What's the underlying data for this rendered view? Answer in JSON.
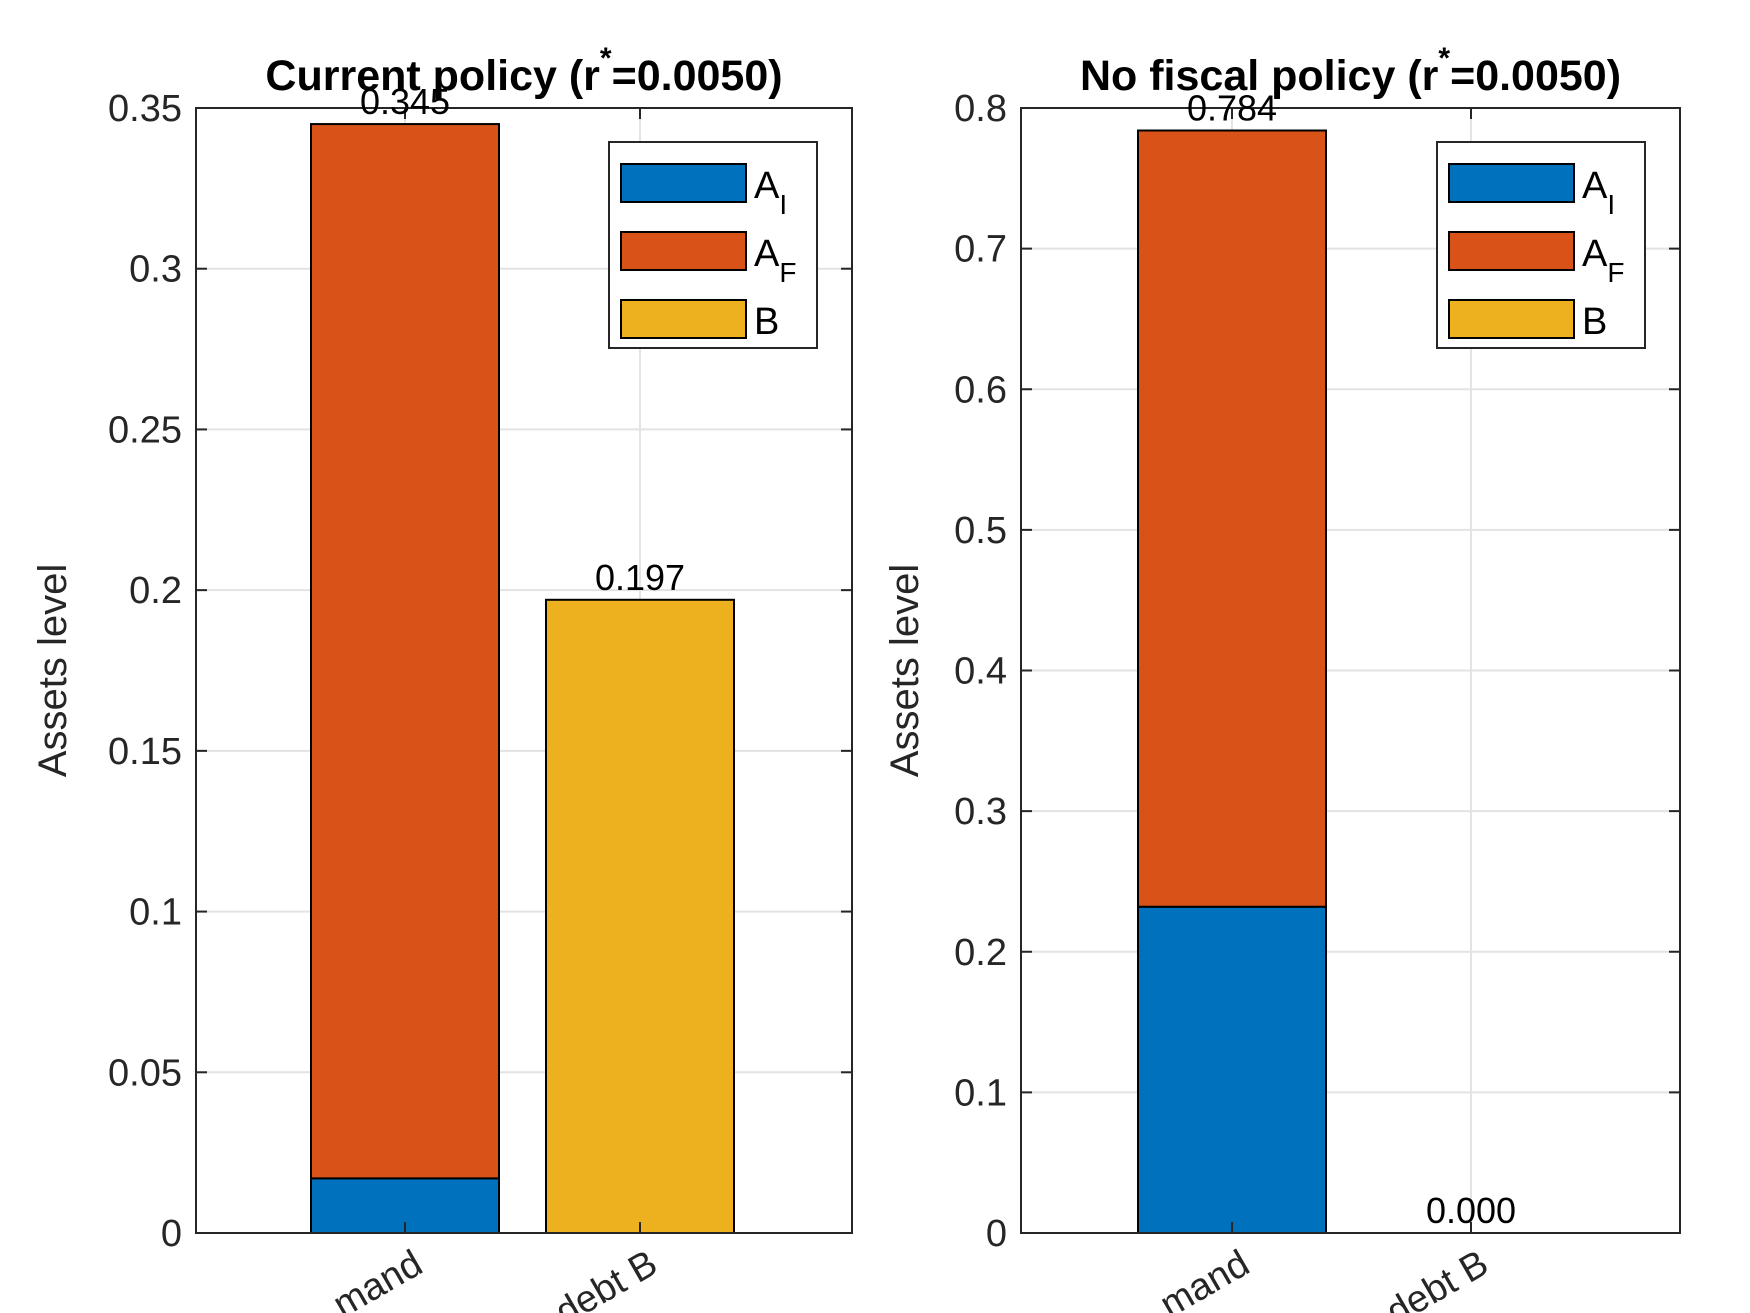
{
  "chart_data": [
    {
      "type": "bar",
      "stacked": true,
      "title": "Current policy (r",
      "title_superscript": "*",
      "title_suffix": "=0.0050)",
      "ylabel": "Assets level",
      "xlabel": "",
      "categories": [
        "mand",
        "debt B"
      ],
      "ylim": [
        0,
        0.35
      ],
      "yticks": [
        "0",
        "0.05",
        "0.1",
        "0.15",
        "0.2",
        "0.25",
        "0.3",
        "0.35"
      ],
      "ytick_values": [
        0,
        0.05,
        0.1,
        0.15,
        0.2,
        0.25,
        0.3,
        0.35
      ],
      "grid": true,
      "legend_position": "top-right",
      "series": [
        {
          "name": "A",
          "name_sub": "I",
          "color": "#0072BD",
          "values": [
            0.017,
            0
          ]
        },
        {
          "name": "A",
          "name_sub": "F",
          "color": "#D95319",
          "values": [
            0.328,
            0
          ]
        },
        {
          "name": "B",
          "name_sub": "",
          "color": "#EDB120",
          "values": [
            0,
            0.197
          ]
        }
      ],
      "data_labels": [
        "0.345",
        "0.197"
      ]
    },
    {
      "type": "bar",
      "stacked": true,
      "title": "No fiscal policy (r",
      "title_superscript": "*",
      "title_suffix": "=0.0050)",
      "ylabel": "Assets level",
      "xlabel": "",
      "categories": [
        "mand",
        "debt B"
      ],
      "ylim": [
        0,
        0.8
      ],
      "yticks": [
        "0",
        "0.1",
        "0.2",
        "0.3",
        "0.4",
        "0.5",
        "0.6",
        "0.7",
        "0.8"
      ],
      "ytick_values": [
        0,
        0.1,
        0.2,
        0.3,
        0.4,
        0.5,
        0.6,
        0.7,
        0.8
      ],
      "grid": true,
      "legend_position": "top-right",
      "series": [
        {
          "name": "A",
          "name_sub": "I",
          "color": "#0072BD",
          "values": [
            0.232,
            0
          ]
        },
        {
          "name": "A",
          "name_sub": "F",
          "color": "#D95319",
          "values": [
            0.552,
            0
          ]
        },
        {
          "name": "B",
          "name_sub": "",
          "color": "#EDB120",
          "values": [
            0,
            0.0
          ]
        }
      ],
      "data_labels": [
        "0.784",
        "0.000"
      ]
    }
  ]
}
